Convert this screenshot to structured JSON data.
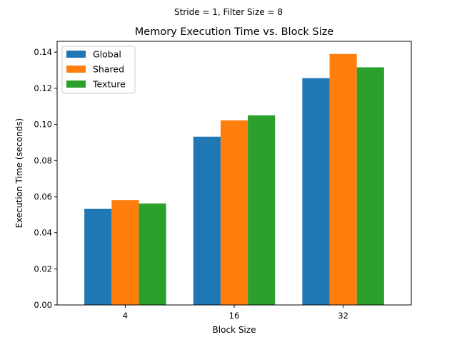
{
  "chart_data": {
    "type": "bar",
    "suptitle": "Stride = 1, Filter Size = 8",
    "title": "Memory Execution Time vs. Block Size",
    "xlabel": "Block Size",
    "ylabel": "Execution Time (seconds)",
    "categories": [
      "4",
      "16",
      "32"
    ],
    "series": [
      {
        "name": "Global",
        "values": [
          0.0533,
          0.0932,
          0.1256
        ],
        "color": "#1f77b4"
      },
      {
        "name": "Shared",
        "values": [
          0.058,
          0.1022,
          0.139
        ],
        "color": "#ff7f0e"
      },
      {
        "name": "Texture",
        "values": [
          0.0562,
          0.105,
          0.1316
        ],
        "color": "#2ca02c"
      }
    ],
    "ylim": [
      0,
      0.146
    ],
    "yticks": [
      "0.00",
      "0.02",
      "0.04",
      "0.06",
      "0.08",
      "0.10",
      "0.12",
      "0.14"
    ],
    "legend_position": "top-left",
    "grid": false
  }
}
